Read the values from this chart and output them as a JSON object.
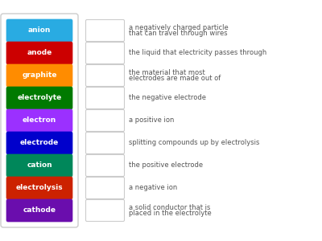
{
  "terms": [
    "anion",
    "anode",
    "graphite",
    "electrolyte",
    "electron",
    "electrode",
    "cation",
    "electrolysis",
    "cathode"
  ],
  "colors": [
    "#29ABE2",
    "#CC0000",
    "#FF8C00",
    "#007A00",
    "#9B30FF",
    "#0000CC",
    "#00875A",
    "#CC2200",
    "#6A0DAD"
  ],
  "definitions": [
    "a negatively charged particle\nthat can travel through wires",
    "the liquid that electricity passes through",
    "the material that most\nelectrodes are made out of",
    "the negative electrode",
    "a positive ion",
    "splitting compounds up by electrolysis",
    "the positive electrode",
    "a negative ion",
    "a solid conductor that is\nplaced in the electrolyte"
  ],
  "background": "#FFFFFF",
  "term_text_color": "#FFFFFF",
  "def_text_color": "#555555",
  "box_outline": "#CCCCCC",
  "outer_border_color": "#CCCCCC",
  "fig_width": 4.0,
  "fig_height": 3.0,
  "dpi": 100
}
